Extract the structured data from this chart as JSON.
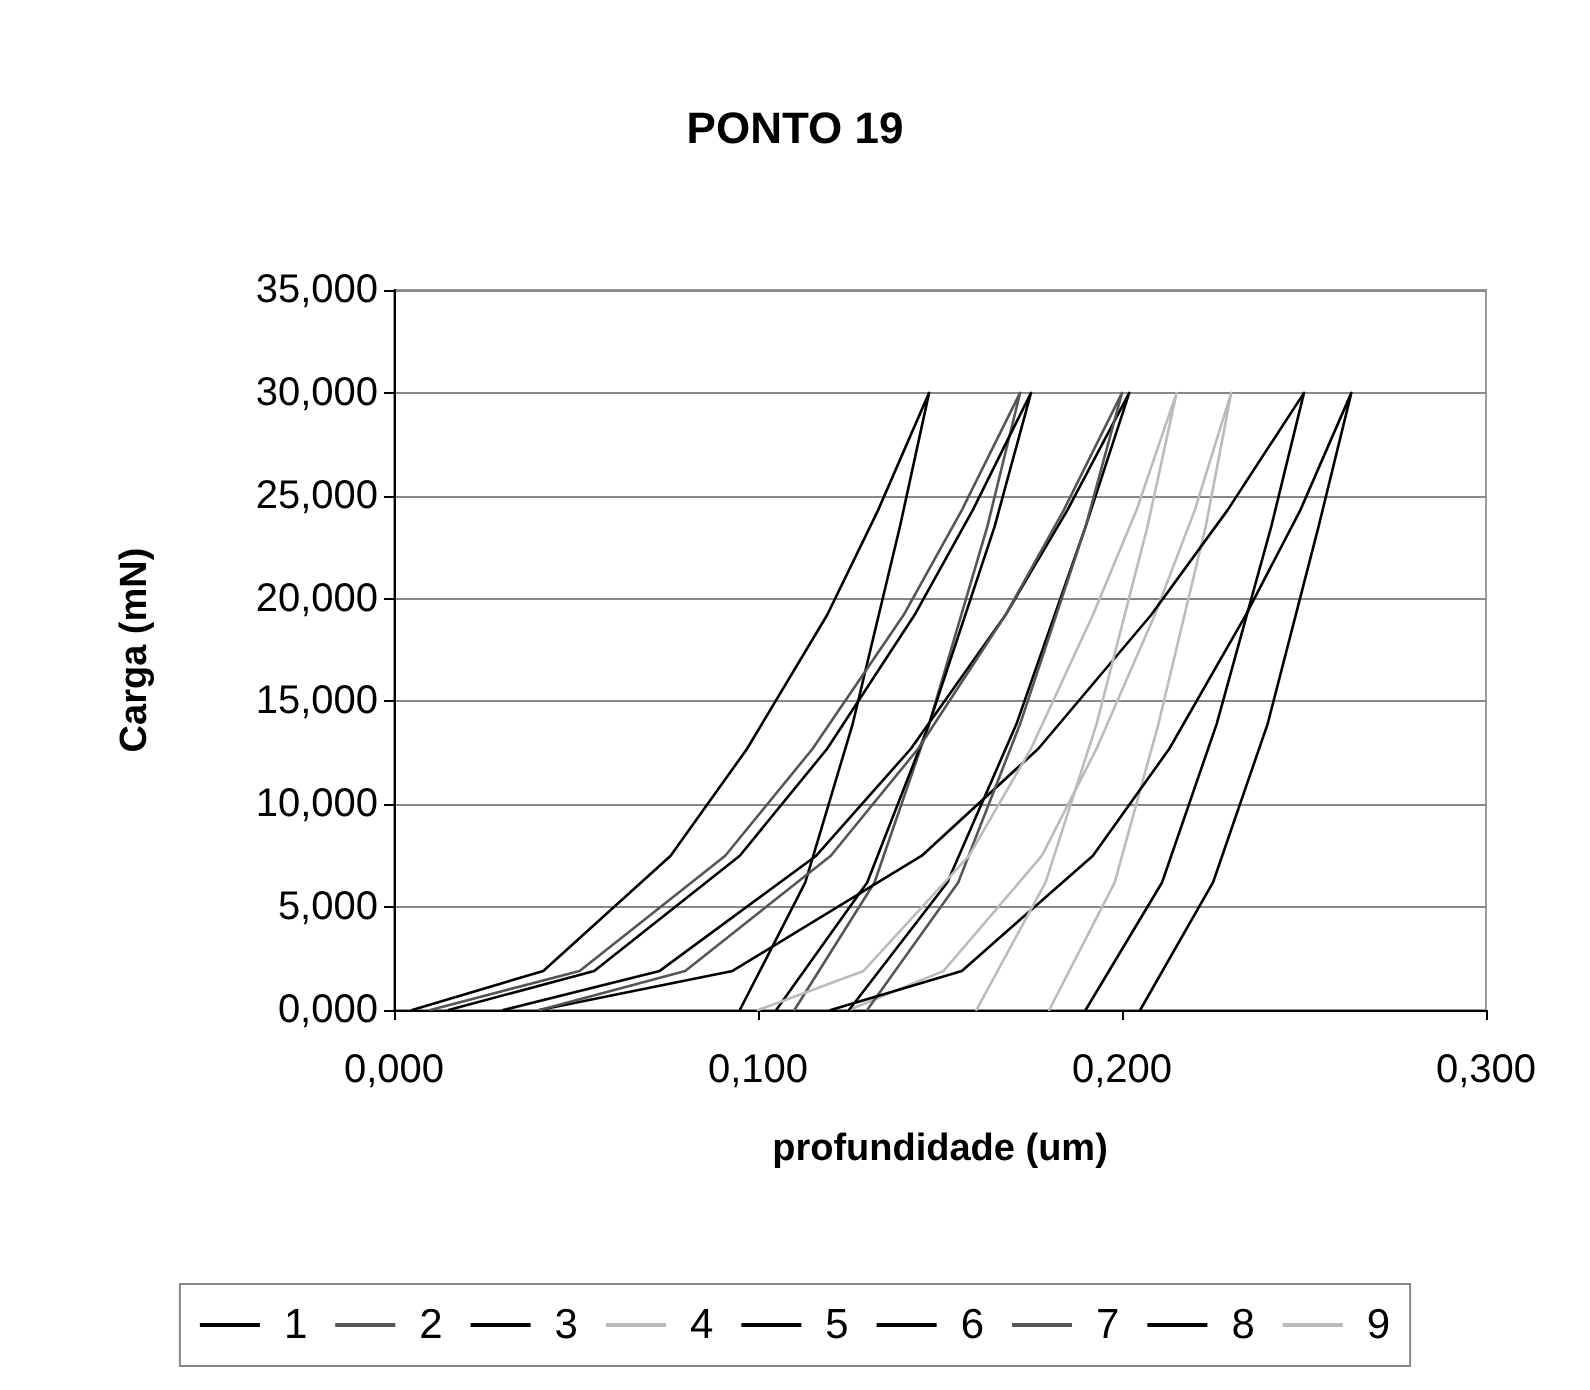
{
  "chart_data": {
    "type": "line",
    "title": "PONTO 19",
    "xlabel": "profundidade (um)",
    "ylabel": "Carga (mN)",
    "xlim": [
      0,
      0.3
    ],
    "ylim": [
      0,
      35
    ],
    "xticks": [
      {
        "value": 0,
        "label": "0,000"
      },
      {
        "value": 0.1,
        "label": "0,100"
      },
      {
        "value": 0.2,
        "label": "0,200"
      },
      {
        "value": 0.3,
        "label": "0,300"
      }
    ],
    "yticks": [
      {
        "value": 0,
        "label": "0,000"
      },
      {
        "value": 5,
        "label": "5,000"
      },
      {
        "value": 10,
        "label": "10,000"
      },
      {
        "value": 15,
        "label": "15,000"
      },
      {
        "value": 20,
        "label": "20,000"
      },
      {
        "value": 25,
        "label": "25,000"
      },
      {
        "value": 30,
        "label": "30,000"
      },
      {
        "value": 35,
        "label": "35,000"
      }
    ],
    "grid": "y",
    "legend": "bottom",
    "marker": "none",
    "line_style": "solid",
    "series": [
      {
        "name": "1",
        "color": "#000000",
        "x": [
          0.005,
          0.041,
          0.076,
          0.097,
          0.119,
          0.133,
          0.147,
          0.139,
          0.126,
          0.113,
          0.095
        ],
        "values": [
          0,
          1.9,
          7.5,
          12.7,
          19.2,
          24.3,
          30,
          23.5,
          13.9,
          6.2,
          0
        ]
      },
      {
        "name": "2",
        "color": "#555555",
        "x": [
          0.01,
          0.051,
          0.091,
          0.115,
          0.14,
          0.156,
          0.172,
          0.163,
          0.147,
          0.132,
          0.11
        ],
        "values": [
          0,
          1.9,
          7.5,
          12.7,
          19.2,
          24.3,
          30,
          23.5,
          13.9,
          6.2,
          0
        ]
      },
      {
        "name": "3",
        "color": "#000000",
        "x": [
          0.015,
          0.055,
          0.095,
          0.119,
          0.143,
          0.159,
          0.175,
          0.165,
          0.147,
          0.13,
          0.105
        ],
        "values": [
          0,
          1.9,
          7.5,
          12.7,
          19.2,
          24.3,
          30,
          23.5,
          13.9,
          6.2,
          0
        ]
      },
      {
        "name": "4",
        "color": "#bbbbbb",
        "x": [
          0.125,
          0.151,
          0.178,
          0.193,
          0.209,
          0.22,
          0.23,
          0.223,
          0.21,
          0.198,
          0.18
        ],
        "values": [
          0,
          1.9,
          7.5,
          12.7,
          19.2,
          24.3,
          30,
          23.5,
          13.9,
          6.2,
          0
        ]
      },
      {
        "name": "5",
        "color": "#000000",
        "x": [
          0.04,
          0.093,
          0.145,
          0.177,
          0.208,
          0.229,
          0.25,
          0.241,
          0.226,
          0.211,
          0.19
        ],
        "values": [
          0,
          1.9,
          7.5,
          12.7,
          19.2,
          24.3,
          30,
          23.5,
          13.9,
          6.2,
          0
        ]
      },
      {
        "name": "6",
        "color": "#000000",
        "x": [
          0.03,
          0.073,
          0.116,
          0.142,
          0.168,
          0.185,
          0.202,
          0.19,
          0.171,
          0.152,
          0.125
        ],
        "values": [
          0,
          1.9,
          7.5,
          12.7,
          19.2,
          24.3,
          30,
          23.5,
          13.9,
          6.2,
          0
        ]
      },
      {
        "name": "7",
        "color": "#555555",
        "x": [
          0.04,
          0.08,
          0.12,
          0.144,
          0.168,
          0.184,
          0.2,
          0.19,
          0.172,
          0.155,
          0.13
        ],
        "values": [
          0,
          1.9,
          7.5,
          12.7,
          19.2,
          24.3,
          30,
          23.5,
          13.9,
          6.2,
          0
        ]
      },
      {
        "name": "8",
        "color": "#000000",
        "x": [
          0.12,
          0.156,
          0.192,
          0.213,
          0.234,
          0.249,
          0.263,
          0.254,
          0.24,
          0.225,
          0.205
        ],
        "values": [
          0,
          1.9,
          7.5,
          12.7,
          19.2,
          24.3,
          30,
          23.5,
          13.9,
          6.2,
          0
        ]
      },
      {
        "name": "9",
        "color": "#bbbbbb",
        "x": [
          0.1,
          0.129,
          0.158,
          0.175,
          0.192,
          0.204,
          0.215,
          0.207,
          0.193,
          0.179,
          0.16
        ],
        "values": [
          0,
          1.9,
          7.5,
          12.7,
          19.2,
          24.3,
          30,
          23.5,
          13.9,
          6.2,
          0
        ]
      }
    ]
  }
}
